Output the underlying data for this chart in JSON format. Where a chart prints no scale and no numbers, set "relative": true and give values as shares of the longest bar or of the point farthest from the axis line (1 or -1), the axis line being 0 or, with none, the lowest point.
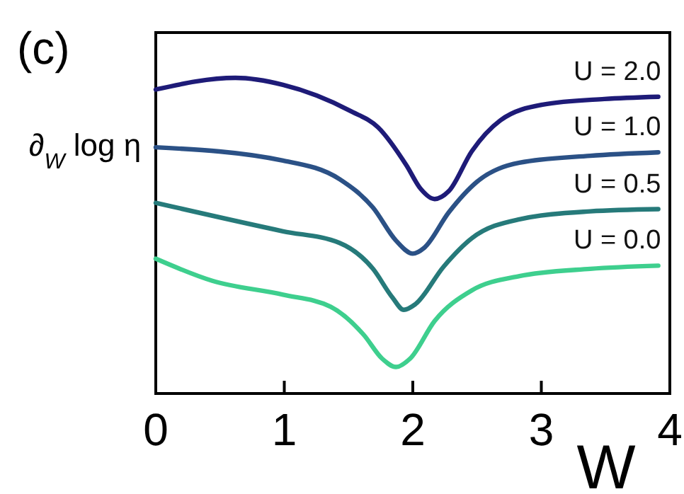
{
  "chart_data": {
    "type": "line",
    "title": "(c)",
    "xlabel": "W",
    "ylabel": "∂$_{W}$ log η",
    "relative": true,
    "xlim": [
      0,
      4
    ],
    "xticks": [
      0,
      1,
      2,
      3,
      4
    ],
    "line_style": "solid",
    "marker": "none",
    "grid": false,
    "legend": false,
    "series": [
      {
        "name": "U = 2.0",
        "color": "#1e1b78",
        "x": [
          0,
          0.62,
          0.99,
          1.51,
          1.73,
          1.95,
          2.06,
          2.17,
          2.28,
          2.46,
          2.68,
          3.01,
          3.49,
          3.91
        ],
        "values": [
          0.963,
          1.0,
          0.978,
          0.896,
          0.843,
          0.723,
          0.649,
          0.616,
          0.641,
          0.768,
          0.865,
          0.915,
          0.933,
          0.94
        ]
      },
      {
        "name": "U = 1.0",
        "color": "#2b5186",
        "x": [
          0,
          0.99,
          1.43,
          1.69,
          1.87,
          2.0,
          2.09,
          2.28,
          2.5,
          2.83,
          3.38,
          3.91
        ],
        "values": [
          0.78,
          0.738,
          0.679,
          0.589,
          0.484,
          0.443,
          0.462,
          0.574,
          0.671,
          0.731,
          0.753,
          0.764
        ]
      },
      {
        "name": "U = 0.5",
        "color": "#267a7a",
        "x": [
          0,
          0.99,
          1.43,
          1.69,
          1.84,
          1.93,
          2.02,
          2.24,
          2.46,
          2.83,
          3.38,
          3.91
        ],
        "values": [
          0.604,
          0.514,
          0.477,
          0.395,
          0.305,
          0.265,
          0.283,
          0.402,
          0.492,
          0.552,
          0.577,
          0.584
        ]
      },
      {
        "name": "U = 0.0",
        "color": "#3ecf8e",
        "x": [
          0,
          0.44,
          0.99,
          1.36,
          1.62,
          1.76,
          1.87,
          1.98,
          2.17,
          2.46,
          2.83,
          3.38,
          3.91
        ],
        "values": [
          0.427,
          0.357,
          0.313,
          0.275,
          0.185,
          0.111,
          0.084,
          0.111,
          0.23,
          0.327,
          0.372,
          0.395,
          0.405
        ]
      }
    ]
  }
}
